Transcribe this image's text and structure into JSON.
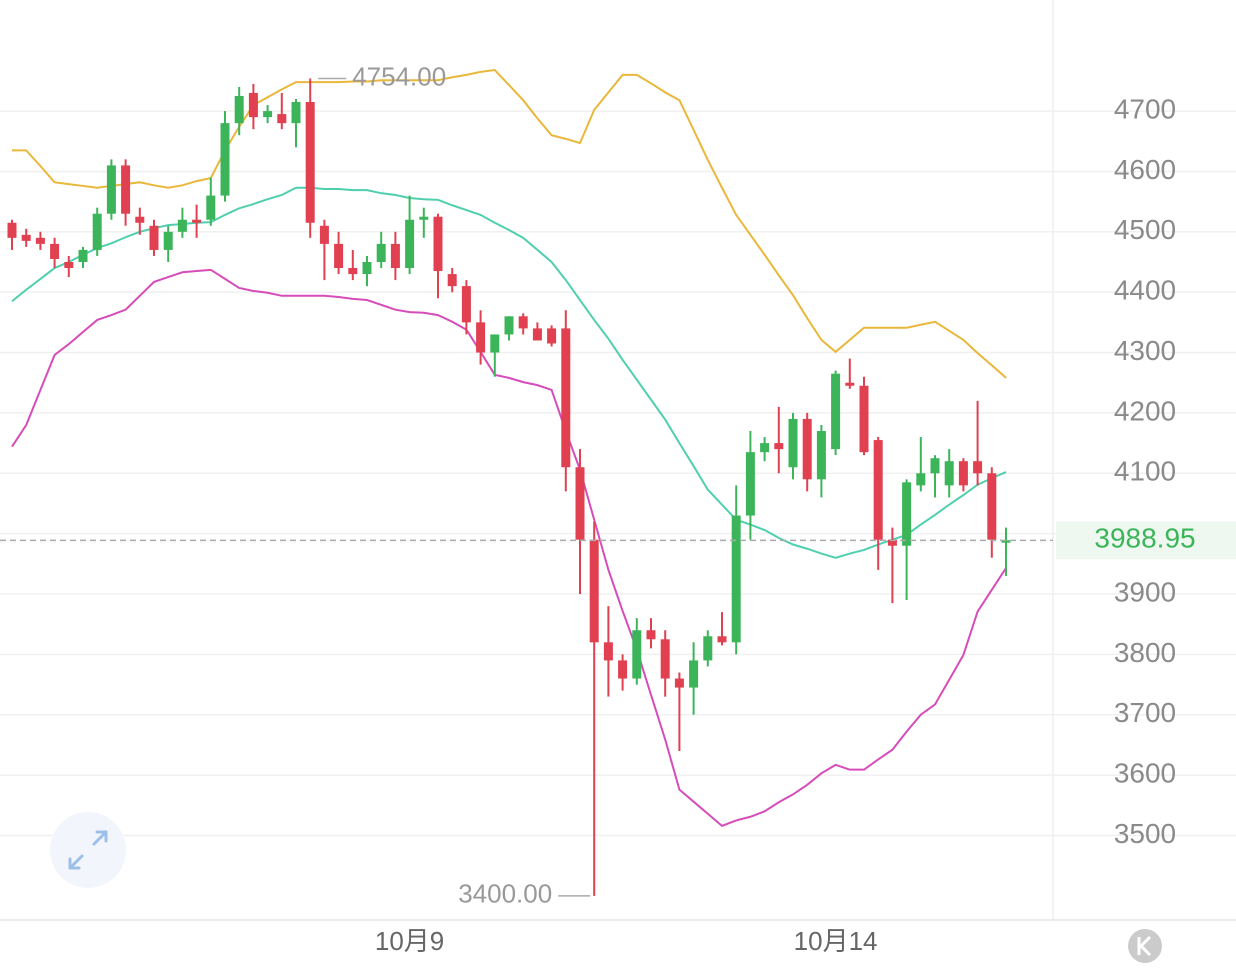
{
  "chart_data": {
    "type": "candlestick",
    "categories": [
      null,
      null,
      null,
      null,
      null,
      null,
      null,
      null,
      null,
      null,
      null,
      null,
      null,
      null,
      null,
      null,
      null,
      null,
      null,
      null,
      null,
      null,
      null,
      null,
      null,
      null,
      null,
      null,
      "10月9",
      null,
      null,
      null,
      null,
      null,
      null,
      null,
      null,
      null,
      null,
      null,
      null,
      null,
      null,
      null,
      null,
      null,
      null,
      null,
      null,
      null,
      null,
      null,
      null,
      null,
      null,
      null,
      null,
      null,
      "10月14",
      null,
      null,
      null,
      null,
      null,
      null,
      null,
      null,
      null,
      null,
      null,
      null
    ],
    "open": [
      4515,
      4495,
      4490,
      4480,
      4450,
      4450,
      4470,
      4530,
      4610,
      4525,
      4510,
      4470,
      4500,
      4520,
      4520,
      4560,
      4680,
      4730,
      4690,
      4695,
      4680,
      4715,
      4510,
      4480,
      4440,
      4430,
      4450,
      4480,
      4440,
      4520,
      4525,
      4430,
      4410,
      4350,
      4300,
      4330,
      4360,
      4340,
      4340,
      4340,
      4110,
      3990,
      3820,
      3790,
      3760,
      3840,
      3825,
      3760,
      3745,
      3790,
      3830,
      3820,
      4030,
      4135,
      4150,
      4110,
      4190,
      4090,
      4140,
      4250,
      4245,
      4155,
      3990,
      3980,
      4080,
      4100,
      4080,
      4120,
      4120,
      4100,
      3985
    ],
    "high": [
      4520,
      4505,
      4500,
      4490,
      4460,
      4475,
      4540,
      4620,
      4620,
      4540,
      4520,
      4510,
      4540,
      4545,
      4590,
      4700,
      4740,
      4745,
      4710,
      4730,
      4720,
      4754,
      4520,
      4500,
      4470,
      4460,
      4500,
      4500,
      4560,
      4540,
      4530,
      4440,
      4420,
      4370,
      4330,
      4360,
      4365,
      4350,
      4345,
      4370,
      4140,
      4020,
      3880,
      3800,
      3860,
      3860,
      3840,
      3770,
      3820,
      3840,
      3870,
      4080,
      4170,
      4160,
      4210,
      4200,
      4200,
      4180,
      4270,
      4290,
      4260,
      4160,
      4010,
      4090,
      4160,
      4130,
      4140,
      4125,
      4220,
      4110,
      4010
    ],
    "low": [
      4470,
      4475,
      4470,
      4440,
      4425,
      4440,
      4460,
      4520,
      4510,
      4495,
      4460,
      4450,
      4490,
      4490,
      4510,
      4550,
      4660,
      4670,
      4680,
      4670,
      4640,
      4490,
      4420,
      4430,
      4420,
      4410,
      4440,
      4420,
      4430,
      4490,
      4390,
      4400,
      4330,
      4280,
      4260,
      4320,
      4330,
      4320,
      4310,
      4070,
      3900,
      3400,
      3730,
      3740,
      3750,
      3810,
      3730,
      3640,
      3700,
      3780,
      3815,
      3800,
      3990,
      4120,
      4100,
      4090,
      4070,
      4060,
      4130,
      4240,
      4130,
      3940,
      3885,
      3890,
      4070,
      4060,
      4060,
      4070,
      4080,
      3960,
      3930
    ],
    "close": [
      4490,
      4485,
      4480,
      4455,
      4440,
      4470,
      4530,
      4610,
      4530,
      4515,
      4470,
      4500,
      4520,
      4515,
      4560,
      4680,
      4725,
      4690,
      4700,
      4680,
      4715,
      4515,
      4480,
      4440,
      4430,
      4450,
      4480,
      4440,
      4520,
      4525,
      4435,
      4410,
      4350,
      4300,
      4330,
      4360,
      4340,
      4320,
      4315,
      4110,
      3990,
      3820,
      3790,
      3760,
      3840,
      3825,
      3760,
      3745,
      3790,
      3830,
      3820,
      4030,
      4135,
      4150,
      4140,
      4190,
      4090,
      4170,
      4265,
      4245,
      4135,
      3990,
      3980,
      4085,
      4100,
      4125,
      4120,
      4080,
      4100,
      3990,
      3988.95
    ],
    "up_color": "#3cb55a",
    "down_color": "#e0404f",
    "series": [
      {
        "color": "#e9b73a",
        "values": [
          4635,
          4635,
          4609,
          4582,
          4579,
          4576,
          4573,
          4576,
          4579,
          4582,
          4577,
          4573,
          4577,
          4584,
          4589,
          4635,
          4674,
          4710,
          4723,
          4736,
          4748,
          4748,
          4748,
          4748,
          4749,
          4749,
          4751,
          4751,
          4751,
          4751,
          4751,
          4756,
          4760,
          4765,
          4768,
          4743,
          4718,
          4688,
          4660,
          4654,
          4647,
          4702,
          4731,
          4760,
          4760,
          4746,
          4731,
          4718,
          4669,
          4619,
          4573,
          4528,
          4495,
          4462,
          4428,
          4395,
          4357,
          4321,
          4301,
          4321,
          4341,
          4341,
          4341,
          4341,
          4346,
          4351,
          4336,
          4321,
          4299,
          4279,
          4258
        ]
      },
      {
        "color": "#4fcfae",
        "values": [
          4385,
          4404,
          4422,
          4440,
          4450,
          4462,
          4473,
          4481,
          4491,
          4500,
          4506,
          4511,
          4513,
          4515,
          4516,
          4528,
          4539,
          4546,
          4554,
          4561,
          4573,
          4573,
          4571,
          4571,
          4569,
          4569,
          4564,
          4561,
          4556,
          4554,
          4553,
          4544,
          4536,
          4528,
          4515,
          4503,
          4490,
          4470,
          4450,
          4420,
          4387,
          4354,
          4323,
          4288,
          4255,
          4222,
          4189,
          4150,
          4112,
          4073,
          4048,
          4023,
          4015,
          4006,
          3993,
          3982,
          3975,
          3967,
          3960,
          3967,
          3973,
          3982,
          3990,
          3998,
          4015,
          4031,
          4048,
          4064,
          4081,
          4092,
          4102
        ]
      },
      {
        "color": "#d64cb9",
        "values": [
          4144,
          4180,
          4238,
          4296,
          4314,
          4334,
          4354,
          4362,
          4371,
          4394,
          4417,
          4425,
          4433,
          4435,
          4437,
          4422,
          4407,
          4402,
          4399,
          4394,
          4394,
          4394,
          4394,
          4392,
          4389,
          4387,
          4379,
          4371,
          4367,
          4366,
          4362,
          4351,
          4338,
          4301,
          4263,
          4258,
          4251,
          4246,
          4238,
          4170,
          4106,
          4023,
          3940,
          3872,
          3808,
          3733,
          3659,
          3576,
          3556,
          3536,
          3516,
          3525,
          3531,
          3540,
          3555,
          3568,
          3584,
          3603,
          3617,
          3609,
          3609,
          3626,
          3642,
          3672,
          3700,
          3717,
          3758,
          3799,
          3871,
          3907,
          3943
        ]
      }
    ],
    "ylim": [
      3360,
      4884
    ],
    "yticks": [
      3500,
      3600,
      3700,
      3800,
      3900,
      4000,
      4100,
      4200,
      4300,
      4400,
      4500,
      4600,
      4700
    ],
    "grid": true,
    "high_label": {
      "value": 4754,
      "label": "4754.00"
    },
    "low_label": {
      "value": 3400,
      "label": "3400.00"
    },
    "last_price": {
      "value": 3988.95,
      "label": "3988.95"
    }
  }
}
